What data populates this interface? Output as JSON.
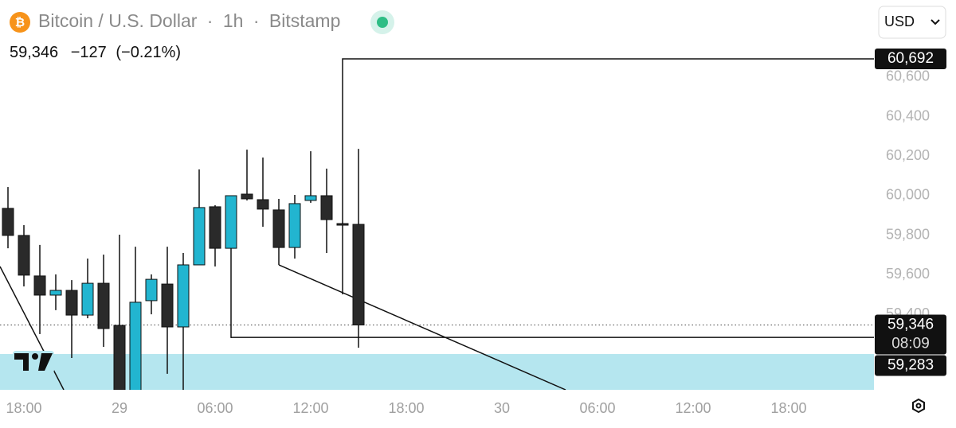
{
  "header": {
    "symbol": "Bitcoin / U.S. Dollar",
    "interval": "1h",
    "exchange": "Bitstamp",
    "last": "59,346",
    "change": "−127",
    "change_pct": "(−0.21%)",
    "currency": "USD"
  },
  "chart_data": {
    "type": "candlestick",
    "x": [
      17,
      18,
      19,
      20,
      21,
      22,
      23,
      24,
      25,
      26,
      27,
      28,
      29,
      30,
      31,
      32,
      33,
      34,
      35,
      36,
      37,
      38,
      39
    ],
    "open": [
      59936,
      59799,
      59594,
      59497,
      59521,
      59396,
      59557,
      59344,
      58958,
      59469,
      59553,
      59336,
      59650,
      59944,
      59734,
      60008,
      59980,
      59928,
      59738,
      59976,
      60000,
      59859,
      59855
    ],
    "high": [
      60044,
      59851,
      59751,
      59602,
      59573,
      59682,
      59702,
      59803,
      59742,
      59602,
      59742,
      59710,
      60133,
      59952,
      60000,
      60233,
      60193,
      59984,
      60004,
      60225,
      60137,
      59863,
      60237
    ],
    "low": [
      59734,
      59541,
      59300,
      59421,
      59179,
      59380,
      59235,
      58958,
      58950,
      59400,
      59099,
      58958,
      59650,
      59642,
      59280,
      59976,
      59843,
      59650,
      59682,
      59964,
      59710,
      59851,
      59231
    ],
    "close": [
      59799,
      59598,
      59497,
      59521,
      59396,
      59557,
      59328,
      58978,
      59461,
      59577,
      59336,
      59650,
      59940,
      59734,
      60000,
      59984,
      59932,
      59738,
      59960,
      60000,
      59879,
      59855,
      59346
    ],
    "up_color": "#22b5d0",
    "down_color": "#2a2a2a",
    "xlim": [
      16.5,
      71.35
    ],
    "ylim": [
      59018,
      60990
    ],
    "xticks": [
      {
        "value": 18,
        "label": "18:00"
      },
      {
        "value": 24,
        "label": "29"
      },
      {
        "value": 30,
        "label": "06:00"
      },
      {
        "value": 36,
        "label": "12:00"
      },
      {
        "value": 42,
        "label": "18:00"
      },
      {
        "value": 48,
        "label": "30"
      },
      {
        "value": 54,
        "label": "06:00"
      },
      {
        "value": 60,
        "label": "12:00"
      },
      {
        "value": 66,
        "label": "18:00"
      }
    ],
    "yticks": [
      {
        "value": 59400,
        "label": "59,400"
      },
      {
        "value": 59600,
        "label": "59,600"
      },
      {
        "value": 59800,
        "label": "59,800"
      },
      {
        "value": 60000,
        "label": "60,000"
      },
      {
        "value": 60200,
        "label": "60,200"
      },
      {
        "value": 60400,
        "label": "60,400"
      },
      {
        "value": 60600,
        "label": "60,600"
      }
    ],
    "zone": {
      "low": 59018,
      "high": 59199,
      "color": "#b5e6ef"
    },
    "drawings": [
      {
        "x": [
          16.5,
          20.5
        ],
        "y": [
          59642,
          59018
        ]
      },
      {
        "x": [
          34,
          52
        ],
        "y": [
          59650,
          59018
        ]
      },
      {
        "x": [
          38,
          38,
          71.35
        ],
        "y": [
          59501,
          60692,
          60692
        ]
      },
      {
        "x": [
          31,
          71.35
        ],
        "y": [
          59283,
          59283
        ]
      }
    ],
    "last_price": 59346,
    "price_tags": [
      {
        "value": 60692,
        "label": "60,692"
      },
      {
        "value": 59346,
        "label": "59,346",
        "countdown": "08:09"
      },
      {
        "value": 59283,
        "label": "59,283"
      }
    ]
  }
}
